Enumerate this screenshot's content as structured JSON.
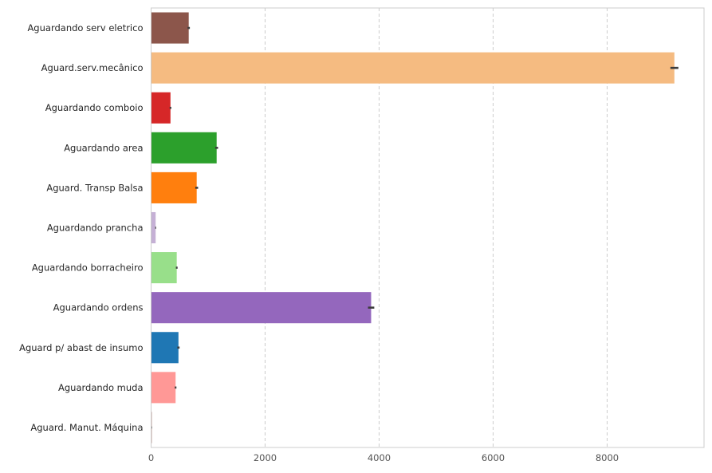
{
  "chart_data": {
    "type": "bar",
    "orientation": "horizontal",
    "categories": [
      "Aguardando serv eletrico",
      "Aguard.serv.mecânico",
      "Aguardando comboio",
      "Aguardando area",
      "Aguard. Transp Balsa",
      "Aguardando prancha",
      "Aguardando borracheiro",
      "Aguardando ordens",
      "Aguard p/ abast de insumo",
      "Aguardando muda",
      "Aguard. Manut. Máquina"
    ],
    "values": [
      660,
      9180,
      340,
      1150,
      800,
      80,
      450,
      3860,
      480,
      430,
      10
    ],
    "error": [
      20,
      70,
      15,
      25,
      25,
      8,
      15,
      55,
      20,
      15,
      5
    ],
    "colors": [
      "#8c564b",
      "#f5bb81",
      "#d62728",
      "#2ca02c",
      "#ff7f0e",
      "#c5b0d5",
      "#98df8a",
      "#9467bd",
      "#1f77b4",
      "#ff9896",
      "#c49c94"
    ],
    "xticks": [
      0,
      2000,
      4000,
      6000,
      8000
    ],
    "xlim": [
      0,
      9700
    ],
    "grid": "x",
    "title": "",
    "xlabel": "",
    "ylabel": ""
  }
}
